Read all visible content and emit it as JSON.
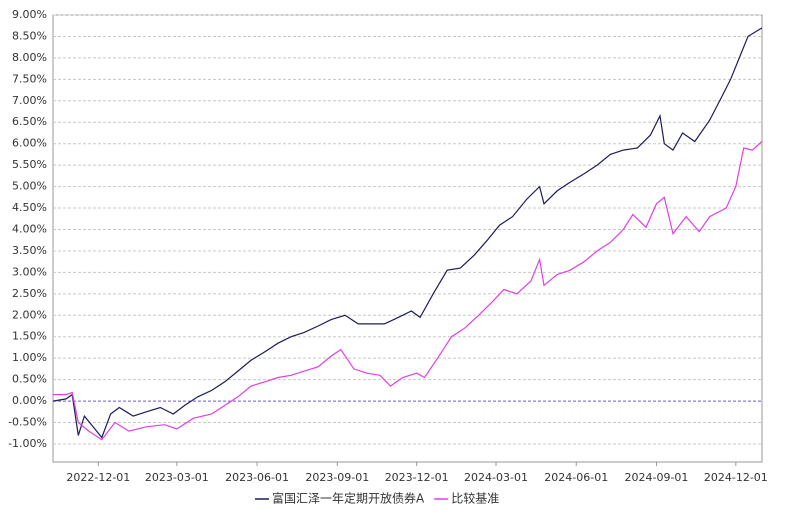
{
  "chart_data": {
    "type": "line",
    "xlim": [
      "2022-10-10",
      "2024-12-31"
    ],
    "xticks": [
      "2022-12-01",
      "2023-03-01",
      "2023-06-01",
      "2023-09-01",
      "2023-12-01",
      "2024-03-01",
      "2024-06-01",
      "2024-09-01",
      "2024-12-01"
    ],
    "ylim": [
      -1.42,
      9
    ],
    "yticks": [
      {
        "value": -1,
        "label": "-1.00%"
      },
      {
        "value": -0.5,
        "label": "-0.50%"
      },
      {
        "value": 0,
        "label": "0.00%"
      },
      {
        "value": 0.5,
        "label": "0.50%"
      },
      {
        "value": 1,
        "label": "1.00%"
      },
      {
        "value": 1.5,
        "label": "1.50%"
      },
      {
        "value": 2,
        "label": "2.00%"
      },
      {
        "value": 2.5,
        "label": "2.50%"
      },
      {
        "value": 3,
        "label": "3.00%"
      },
      {
        "value": 3.5,
        "label": "3.50%"
      },
      {
        "value": 4,
        "label": "4.00%"
      },
      {
        "value": 4.5,
        "label": "4.50%"
      },
      {
        "value": 5,
        "label": "5.00%"
      },
      {
        "value": 5.5,
        "label": "5.50%"
      },
      {
        "value": 6,
        "label": "6.00%"
      },
      {
        "value": 6.5,
        "label": "6.50%"
      },
      {
        "value": 7,
        "label": "7.00%"
      },
      {
        "value": 7.5,
        "label": "7.50%"
      },
      {
        "value": 8,
        "label": "8.00%"
      },
      {
        "value": 8.5,
        "label": "8.50%"
      },
      {
        "value": 9,
        "label": "9.00%"
      }
    ],
    "grid": true,
    "legend": "bottom",
    "series": [
      {
        "name": "富国汇泽一年定期开放债券A",
        "color": "#1c1c5c",
        "x": [
          "2022-10-10",
          "2022-10-25",
          "2022-11-01",
          "2022-11-08",
          "2022-11-15",
          "2022-11-25",
          "2022-12-05",
          "2022-12-15",
          "2022-12-25",
          "2023-01-10",
          "2023-01-25",
          "2023-02-10",
          "2023-02-25",
          "2023-03-10",
          "2023-03-25",
          "2023-04-10",
          "2023-04-25",
          "2023-05-10",
          "2023-05-25",
          "2023-06-10",
          "2023-06-25",
          "2023-07-10",
          "2023-07-25",
          "2023-08-10",
          "2023-08-25",
          "2023-09-10",
          "2023-09-25",
          "2023-10-10",
          "2023-10-25",
          "2023-11-10",
          "2023-11-25",
          "2023-12-05",
          "2023-12-20",
          "2024-01-05",
          "2024-01-20",
          "2024-02-05",
          "2024-02-20",
          "2024-03-05",
          "2024-03-20",
          "2024-04-05",
          "2024-04-20",
          "2024-04-25",
          "2024-05-10",
          "2024-05-25",
          "2024-06-10",
          "2024-06-25",
          "2024-07-10",
          "2024-07-25",
          "2024-08-10",
          "2024-08-25",
          "2024-09-05",
          "2024-09-10",
          "2024-09-20",
          "2024-10-01",
          "2024-10-15",
          "2024-11-01",
          "2024-11-15",
          "2024-11-25",
          "2024-12-05",
          "2024-12-15",
          "2024-12-31"
        ],
        "values": [
          0.0,
          0.05,
          0.15,
          -0.8,
          -0.35,
          -0.6,
          -0.85,
          -0.3,
          -0.15,
          -0.35,
          -0.25,
          -0.15,
          -0.3,
          -0.1,
          0.1,
          0.25,
          0.45,
          0.7,
          0.95,
          1.15,
          1.35,
          1.5,
          1.6,
          1.75,
          1.9,
          2.0,
          1.8,
          1.8,
          1.8,
          1.95,
          2.1,
          1.95,
          2.5,
          3.05,
          3.1,
          3.4,
          3.75,
          4.1,
          4.3,
          4.7,
          5.0,
          4.6,
          4.9,
          5.1,
          5.3,
          5.5,
          5.75,
          5.85,
          5.9,
          6.2,
          6.65,
          6.0,
          5.85,
          6.25,
          6.05,
          6.55,
          7.1,
          7.5,
          8.0,
          8.5,
          8.7
        ]
      },
      {
        "name": "比较基准",
        "color": "#e040e0",
        "x": [
          "2022-10-10",
          "2022-10-25",
          "2022-11-01",
          "2022-11-08",
          "2022-11-20",
          "2022-12-05",
          "2022-12-20",
          "2023-01-05",
          "2023-01-25",
          "2023-02-15",
          "2023-03-01",
          "2023-03-20",
          "2023-04-10",
          "2023-04-25",
          "2023-05-10",
          "2023-05-25",
          "2023-06-10",
          "2023-06-25",
          "2023-07-10",
          "2023-07-25",
          "2023-08-10",
          "2023-08-25",
          "2023-09-05",
          "2023-09-20",
          "2023-10-05",
          "2023-10-20",
          "2023-11-01",
          "2023-11-15",
          "2023-12-01",
          "2023-12-10",
          "2023-12-25",
          "2024-01-10",
          "2024-01-25",
          "2024-02-10",
          "2024-02-25",
          "2024-03-10",
          "2024-03-25",
          "2024-04-10",
          "2024-04-20",
          "2024-04-25",
          "2024-05-10",
          "2024-05-25",
          "2024-06-10",
          "2024-06-25",
          "2024-07-10",
          "2024-07-25",
          "2024-08-05",
          "2024-08-20",
          "2024-09-01",
          "2024-09-10",
          "2024-09-20",
          "2024-10-05",
          "2024-10-20",
          "2024-11-01",
          "2024-11-20",
          "2024-12-01",
          "2024-12-10",
          "2024-12-20",
          "2024-12-31"
        ],
        "values": [
          0.15,
          0.15,
          0.2,
          -0.5,
          -0.7,
          -0.9,
          -0.5,
          -0.7,
          -0.6,
          -0.55,
          -0.65,
          -0.4,
          -0.3,
          -0.1,
          0.1,
          0.35,
          0.45,
          0.55,
          0.6,
          0.7,
          0.8,
          1.05,
          1.2,
          0.75,
          0.65,
          0.6,
          0.35,
          0.55,
          0.65,
          0.55,
          1.0,
          1.5,
          1.7,
          2.0,
          2.3,
          2.6,
          2.5,
          2.8,
          3.3,
          2.7,
          2.95,
          3.05,
          3.25,
          3.5,
          3.7,
          4.0,
          4.35,
          4.05,
          4.6,
          4.75,
          3.9,
          4.3,
          3.95,
          4.3,
          4.5,
          5.0,
          5.9,
          5.85,
          6.05
        ]
      }
    ]
  }
}
